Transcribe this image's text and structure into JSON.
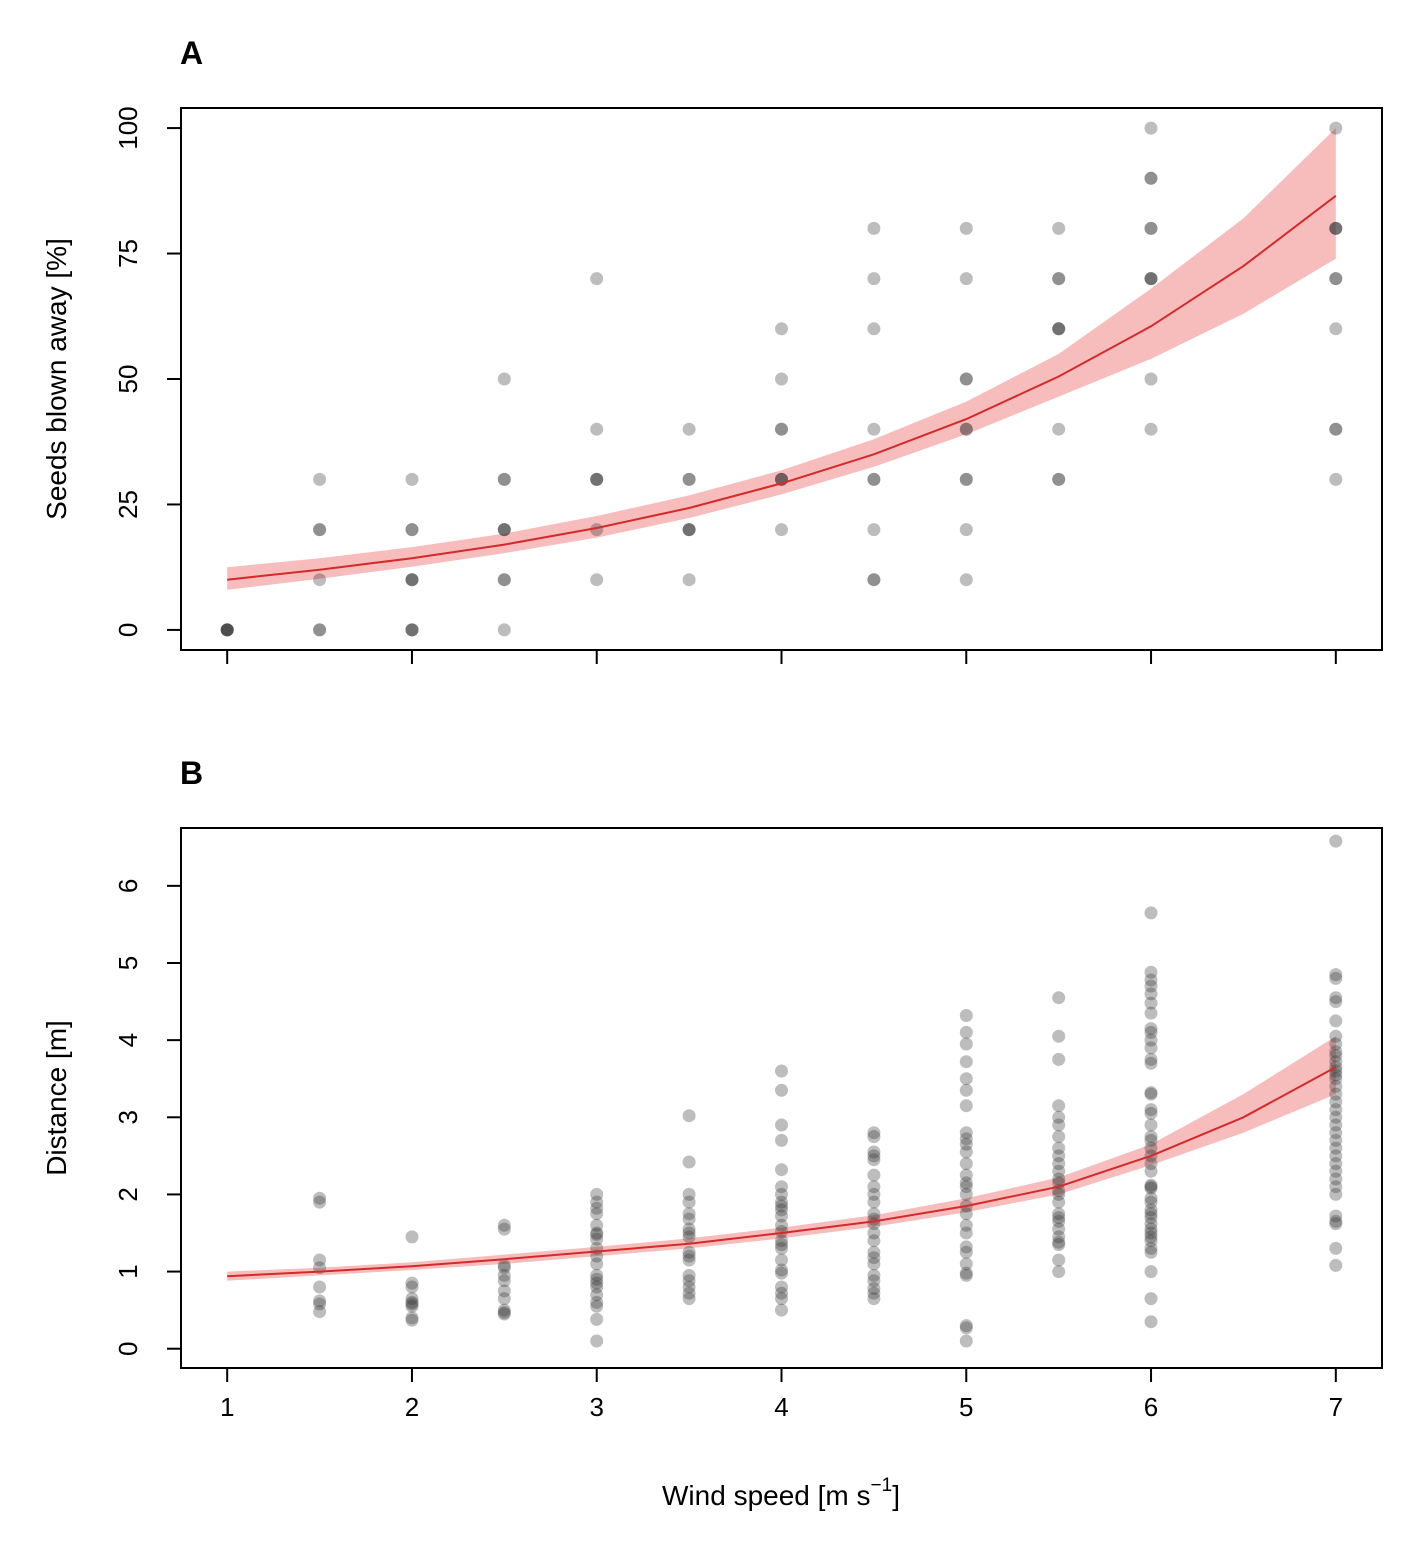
{
  "colors": {
    "fit_line": "#d42a2a",
    "ci_band": "#f4a6a6",
    "point": "#333333",
    "axis": "#000000"
  },
  "xaxis_label": "Wind speed [m s",
  "xaxis_label_superscript": "−1",
  "xaxis_label_end": "]",
  "chart_data": [
    {
      "type": "scatter",
      "panel": "A",
      "title": "",
      "xlabel": "",
      "ylabel": "Seeds blown away [%]",
      "xlim": [
        0.75,
        7.25
      ],
      "ylim": [
        -4,
        104
      ],
      "x_ticks": [
        "1",
        "2",
        "3",
        "4",
        "5",
        "6",
        "7"
      ],
      "x_tick_labels_visible": false,
      "y_ticks": [
        "0",
        "25",
        "50",
        "75",
        "100"
      ],
      "grid": false,
      "legend": "none",
      "points": [
        [
          1,
          0
        ],
        [
          1,
          0
        ],
        [
          1,
          0
        ],
        [
          1,
          0
        ],
        [
          1,
          0
        ],
        [
          1.5,
          30
        ],
        [
          1.5,
          20
        ],
        [
          1.5,
          20
        ],
        [
          1.5,
          10
        ],
        [
          1.5,
          0
        ],
        [
          1.5,
          0
        ],
        [
          2,
          30
        ],
        [
          2,
          20
        ],
        [
          2,
          20
        ],
        [
          2,
          10
        ],
        [
          2,
          10
        ],
        [
          2,
          10
        ],
        [
          2,
          0
        ],
        [
          2,
          0
        ],
        [
          2,
          0
        ],
        [
          2.5,
          50
        ],
        [
          2.5,
          30
        ],
        [
          2.5,
          30
        ],
        [
          2.5,
          20
        ],
        [
          2.5,
          20
        ],
        [
          2.5,
          20
        ],
        [
          2.5,
          10
        ],
        [
          2.5,
          10
        ],
        [
          2.5,
          0
        ],
        [
          3,
          70
        ],
        [
          3,
          40
        ],
        [
          3,
          30
        ],
        [
          3,
          30
        ],
        [
          3,
          30
        ],
        [
          3,
          20
        ],
        [
          3,
          10
        ],
        [
          3.5,
          40
        ],
        [
          3.5,
          30
        ],
        [
          3.5,
          30
        ],
        [
          3.5,
          20
        ],
        [
          3.5,
          20
        ],
        [
          3.5,
          20
        ],
        [
          3.5,
          10
        ],
        [
          4,
          60
        ],
        [
          4,
          50
        ],
        [
          4,
          40
        ],
        [
          4,
          40
        ],
        [
          4,
          30
        ],
        [
          4,
          30
        ],
        [
          4,
          30
        ],
        [
          4,
          20
        ],
        [
          4.5,
          80
        ],
        [
          4.5,
          70
        ],
        [
          4.5,
          60
        ],
        [
          4.5,
          40
        ],
        [
          4.5,
          30
        ],
        [
          4.5,
          30
        ],
        [
          4.5,
          20
        ],
        [
          4.5,
          10
        ],
        [
          4.5,
          10
        ],
        [
          5,
          80
        ],
        [
          5,
          70
        ],
        [
          5,
          50
        ],
        [
          5,
          50
        ],
        [
          5,
          40
        ],
        [
          5,
          40
        ],
        [
          5,
          30
        ],
        [
          5,
          30
        ],
        [
          5,
          20
        ],
        [
          5,
          10
        ],
        [
          5.5,
          80
        ],
        [
          5.5,
          70
        ],
        [
          5.5,
          70
        ],
        [
          5.5,
          60
        ],
        [
          5.5,
          60
        ],
        [
          5.5,
          60
        ],
        [
          5.5,
          40
        ],
        [
          5.5,
          30
        ],
        [
          5.5,
          30
        ],
        [
          6,
          100
        ],
        [
          6,
          90
        ],
        [
          6,
          90
        ],
        [
          6,
          80
        ],
        [
          6,
          80
        ],
        [
          6,
          70
        ],
        [
          6,
          70
        ],
        [
          6,
          70
        ],
        [
          6,
          50
        ],
        [
          6,
          40
        ],
        [
          7,
          100
        ],
        [
          7,
          80
        ],
        [
          7,
          80
        ],
        [
          7,
          80
        ],
        [
          7,
          70
        ],
        [
          7,
          70
        ],
        [
          7,
          60
        ],
        [
          7,
          40
        ],
        [
          7,
          40
        ],
        [
          7,
          30
        ]
      ],
      "fit": {
        "x": [
          1,
          1.5,
          2,
          2.5,
          3,
          3.5,
          4,
          4.5,
          5,
          5.5,
          6,
          6.5,
          7
        ],
        "y": [
          10,
          12,
          14.3,
          17,
          20.3,
          24.3,
          29.2,
          35,
          42,
          50.5,
          60.5,
          72.5,
          86.5
        ],
        "lower": [
          8,
          10.2,
          12.6,
          15.3,
          18.4,
          22.3,
          27,
          32.5,
          39,
          46.5,
          54,
          63,
          74
        ],
        "upper": [
          12.5,
          14.3,
          16.5,
          19.2,
          22.7,
          26.8,
          31.8,
          38,
          45.5,
          55,
          68,
          82,
          100
        ]
      }
    },
    {
      "type": "scatter",
      "panel": "B",
      "title": "",
      "xlabel": "Wind speed [m s⁻¹]",
      "ylabel": "Distance [m]",
      "xlim": [
        0.75,
        7.25
      ],
      "ylim": [
        -0.25,
        6.75
      ],
      "x_ticks": [
        "1",
        "2",
        "3",
        "4",
        "5",
        "6",
        "7"
      ],
      "y_ticks": [
        "0",
        "1",
        "2",
        "3",
        "4",
        "5",
        "6"
      ],
      "grid": false,
      "legend": "none",
      "points": [
        [
          1.5,
          1.95
        ],
        [
          1.5,
          1.9
        ],
        [
          1.5,
          1.15
        ],
        [
          1.5,
          1.05
        ],
        [
          1.5,
          0.8
        ],
        [
          1.5,
          0.62
        ],
        [
          1.5,
          0.58
        ],
        [
          1.5,
          0.48
        ],
        [
          2,
          1.45
        ],
        [
          2,
          0.85
        ],
        [
          2,
          0.8
        ],
        [
          2,
          0.65
        ],
        [
          2,
          0.6
        ],
        [
          2,
          0.58
        ],
        [
          2,
          0.55
        ],
        [
          2,
          0.4
        ],
        [
          2,
          0.37
        ],
        [
          2.5,
          1.6
        ],
        [
          2.5,
          1.55
        ],
        [
          2.5,
          1.08
        ],
        [
          2.5,
          1.05
        ],
        [
          2.5,
          0.95
        ],
        [
          2.5,
          0.88
        ],
        [
          2.5,
          0.75
        ],
        [
          2.5,
          0.65
        ],
        [
          2.5,
          0.5
        ],
        [
          2.5,
          0.47
        ],
        [
          2.5,
          0.45
        ],
        [
          3,
          2.0
        ],
        [
          3,
          1.9
        ],
        [
          3,
          1.82
        ],
        [
          3,
          1.75
        ],
        [
          3,
          1.6
        ],
        [
          3,
          1.5
        ],
        [
          3,
          1.48
        ],
        [
          3,
          1.42
        ],
        [
          3,
          1.3
        ],
        [
          3,
          1.2
        ],
        [
          3,
          1.1
        ],
        [
          3,
          0.95
        ],
        [
          3,
          0.9
        ],
        [
          3,
          0.85
        ],
        [
          3,
          0.8
        ],
        [
          3,
          0.7
        ],
        [
          3,
          0.6
        ],
        [
          3,
          0.55
        ],
        [
          3,
          0.38
        ],
        [
          3,
          0.1
        ],
        [
          3.5,
          3.02
        ],
        [
          3.5,
          2.42
        ],
        [
          3.5,
          2.0
        ],
        [
          3.5,
          1.9
        ],
        [
          3.5,
          1.75
        ],
        [
          3.5,
          1.68
        ],
        [
          3.5,
          1.55
        ],
        [
          3.5,
          1.5
        ],
        [
          3.5,
          1.45
        ],
        [
          3.5,
          1.25
        ],
        [
          3.5,
          1.2
        ],
        [
          3.5,
          1.15
        ],
        [
          3.5,
          0.95
        ],
        [
          3.5,
          0.88
        ],
        [
          3.5,
          0.8
        ],
        [
          3.5,
          0.72
        ],
        [
          3.5,
          0.65
        ],
        [
          4,
          3.6
        ],
        [
          4,
          3.35
        ],
        [
          4,
          2.9
        ],
        [
          4,
          2.7
        ],
        [
          4,
          2.32
        ],
        [
          4,
          2.1
        ],
        [
          4,
          2.0
        ],
        [
          4,
          1.9
        ],
        [
          4,
          1.85
        ],
        [
          4,
          1.8
        ],
        [
          4,
          1.72
        ],
        [
          4,
          1.6
        ],
        [
          4,
          1.52
        ],
        [
          4,
          1.4
        ],
        [
          4,
          1.35
        ],
        [
          4,
          1.3
        ],
        [
          4,
          1.15
        ],
        [
          4,
          1.02
        ],
        [
          4,
          0.98
        ],
        [
          4,
          0.8
        ],
        [
          4,
          0.72
        ],
        [
          4,
          0.65
        ],
        [
          4,
          0.5
        ],
        [
          4.5,
          2.8
        ],
        [
          4.5,
          2.75
        ],
        [
          4.5,
          2.55
        ],
        [
          4.5,
          2.5
        ],
        [
          4.5,
          2.45
        ],
        [
          4.5,
          2.25
        ],
        [
          4.5,
          2.1
        ],
        [
          4.5,
          2.0
        ],
        [
          4.5,
          1.9
        ],
        [
          4.5,
          1.75
        ],
        [
          4.5,
          1.68
        ],
        [
          4.5,
          1.62
        ],
        [
          4.5,
          1.5
        ],
        [
          4.5,
          1.4
        ],
        [
          4.5,
          1.25
        ],
        [
          4.5,
          1.18
        ],
        [
          4.5,
          1.1
        ],
        [
          4.5,
          0.95
        ],
        [
          4.5,
          0.88
        ],
        [
          4.5,
          0.78
        ],
        [
          4.5,
          0.72
        ],
        [
          4.5,
          0.65
        ],
        [
          5,
          4.32
        ],
        [
          5,
          4.1
        ],
        [
          5,
          3.95
        ],
        [
          5,
          3.72
        ],
        [
          5,
          3.5
        ],
        [
          5,
          3.35
        ],
        [
          5,
          3.15
        ],
        [
          5,
          2.8
        ],
        [
          5,
          2.72
        ],
        [
          5,
          2.65
        ],
        [
          5,
          2.55
        ],
        [
          5,
          2.4
        ],
        [
          5,
          2.25
        ],
        [
          5,
          2.15
        ],
        [
          5,
          2.1
        ],
        [
          5,
          2.0
        ],
        [
          5,
          1.85
        ],
        [
          5,
          1.75
        ],
        [
          5,
          1.6
        ],
        [
          5,
          1.5
        ],
        [
          5,
          1.32
        ],
        [
          5,
          1.25
        ],
        [
          5,
          1.1
        ],
        [
          5,
          0.98
        ],
        [
          5,
          0.95
        ],
        [
          5,
          0.3
        ],
        [
          5,
          0.27
        ],
        [
          5,
          0.1
        ],
        [
          5.5,
          4.55
        ],
        [
          5.5,
          4.05
        ],
        [
          5.5,
          3.75
        ],
        [
          5.5,
          3.15
        ],
        [
          5.5,
          3.0
        ],
        [
          5.5,
          2.9
        ],
        [
          5.5,
          2.75
        ],
        [
          5.5,
          2.6
        ],
        [
          5.5,
          2.5
        ],
        [
          5.5,
          2.4
        ],
        [
          5.5,
          2.3
        ],
        [
          5.5,
          2.2
        ],
        [
          5.5,
          2.15
        ],
        [
          5.5,
          2.05
        ],
        [
          5.5,
          2.0
        ],
        [
          5.5,
          1.9
        ],
        [
          5.5,
          1.75
        ],
        [
          5.5,
          1.7
        ],
        [
          5.5,
          1.65
        ],
        [
          5.5,
          1.55
        ],
        [
          5.5,
          1.45
        ],
        [
          5.5,
          1.38
        ],
        [
          5.5,
          1.35
        ],
        [
          5.5,
          1.15
        ],
        [
          5.5,
          1.0
        ],
        [
          6,
          5.65
        ],
        [
          6,
          4.88
        ],
        [
          6,
          4.78
        ],
        [
          6,
          4.7
        ],
        [
          6,
          4.6
        ],
        [
          6,
          4.48
        ],
        [
          6,
          4.35
        ],
        [
          6,
          4.15
        ],
        [
          6,
          4.1
        ],
        [
          6,
          4.0
        ],
        [
          6,
          3.9
        ],
        [
          6,
          3.75
        ],
        [
          6,
          3.7
        ],
        [
          6,
          3.32
        ],
        [
          6,
          3.3
        ],
        [
          6,
          3.1
        ],
        [
          6,
          3.05
        ],
        [
          6,
          2.9
        ],
        [
          6,
          2.75
        ],
        [
          6,
          2.7
        ],
        [
          6,
          2.6
        ],
        [
          6,
          2.5
        ],
        [
          6,
          2.4
        ],
        [
          6,
          2.3
        ],
        [
          6,
          2.12
        ],
        [
          6,
          2.1
        ],
        [
          6,
          2.08
        ],
        [
          6,
          1.95
        ],
        [
          6,
          1.9
        ],
        [
          6,
          1.8
        ],
        [
          6,
          1.75
        ],
        [
          6,
          1.7
        ],
        [
          6,
          1.62
        ],
        [
          6,
          1.55
        ],
        [
          6,
          1.5
        ],
        [
          6,
          1.45
        ],
        [
          6,
          1.4
        ],
        [
          6,
          1.3
        ],
        [
          6,
          1.25
        ],
        [
          6,
          1.0
        ],
        [
          6,
          0.65
        ],
        [
          6,
          0.35
        ],
        [
          7,
          6.58
        ],
        [
          7,
          4.85
        ],
        [
          7,
          4.8
        ],
        [
          7,
          4.55
        ],
        [
          7,
          4.5
        ],
        [
          7,
          4.25
        ],
        [
          7,
          4.05
        ],
        [
          7,
          3.95
        ],
        [
          7,
          3.85
        ],
        [
          7,
          3.8
        ],
        [
          7,
          3.72
        ],
        [
          7,
          3.65
        ],
        [
          7,
          3.6
        ],
        [
          7,
          3.55
        ],
        [
          7,
          3.5
        ],
        [
          7,
          3.4
        ],
        [
          7,
          3.3
        ],
        [
          7,
          3.2
        ],
        [
          7,
          3.1
        ],
        [
          7,
          3.0
        ],
        [
          7,
          2.9
        ],
        [
          7,
          2.8
        ],
        [
          7,
          2.7
        ],
        [
          7,
          2.6
        ],
        [
          7,
          2.5
        ],
        [
          7,
          2.4
        ],
        [
          7,
          2.3
        ],
        [
          7,
          2.2
        ],
        [
          7,
          2.1
        ],
        [
          7,
          2.0
        ],
        [
          7,
          1.72
        ],
        [
          7,
          1.65
        ],
        [
          7,
          1.62
        ],
        [
          7,
          1.3
        ],
        [
          7,
          1.08
        ]
      ],
      "fit": {
        "x": [
          1,
          1.5,
          2,
          2.5,
          3,
          3.5,
          4,
          4.5,
          5,
          5.5,
          6,
          6.5,
          7
        ],
        "y": [
          0.94,
          1.0,
          1.07,
          1.16,
          1.26,
          1.36,
          1.5,
          1.65,
          1.85,
          2.1,
          2.5,
          3.0,
          3.65
        ],
        "lower": [
          0.88,
          0.95,
          1.02,
          1.1,
          1.2,
          1.3,
          1.43,
          1.58,
          1.77,
          2.0,
          2.38,
          2.8,
          3.3
        ],
        "upper": [
          1.0,
          1.05,
          1.12,
          1.22,
          1.32,
          1.43,
          1.57,
          1.73,
          1.95,
          2.22,
          2.65,
          3.3,
          4.05
        ]
      }
    }
  ]
}
